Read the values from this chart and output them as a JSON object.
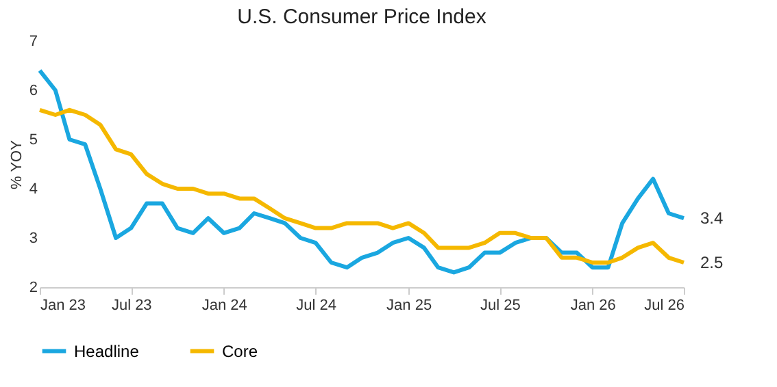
{
  "chart_data": {
    "type": "line",
    "title": "U.S. Consumer Price Index",
    "ylabel": "% YOY",
    "x": [
      "2023-01",
      "2023-02",
      "2023-03",
      "2023-04",
      "2023-05",
      "2023-06",
      "2023-07",
      "2023-08",
      "2023-09",
      "2023-10",
      "2023-11",
      "2023-12",
      "2024-01",
      "2024-02",
      "2024-03",
      "2024-04",
      "2024-05",
      "2024-06",
      "2024-07",
      "2024-08",
      "2024-09",
      "2024-10",
      "2024-11",
      "2024-12",
      "2025-01",
      "2025-02",
      "2025-03",
      "2025-04",
      "2025-05",
      "2025-06",
      "2025-07",
      "2025-08",
      "2025-09",
      "2025-10",
      "2025-11",
      "2025-12",
      "2026-01",
      "2026-02",
      "2026-03",
      "2026-04",
      "2026-05",
      "2026-06",
      "2026-07"
    ],
    "series": [
      {
        "name": "Headline",
        "color": "#1aa7e0",
        "values": [
          6.4,
          6.0,
          5.0,
          4.9,
          4.0,
          3.0,
          3.2,
          3.7,
          3.7,
          3.2,
          3.1,
          3.4,
          3.1,
          3.2,
          3.5,
          3.4,
          3.3,
          3.0,
          2.9,
          2.5,
          2.4,
          2.6,
          2.7,
          2.9,
          3.0,
          2.8,
          2.4,
          2.3,
          2.4,
          2.7,
          2.7,
          2.9,
          3.0,
          3.0,
          2.7,
          2.7,
          2.4,
          2.4,
          3.3,
          3.8,
          4.2,
          3.5,
          3.4
        ]
      },
      {
        "name": "Core",
        "color": "#f5b800",
        "values": [
          5.6,
          5.5,
          5.6,
          5.5,
          5.3,
          4.8,
          4.7,
          4.3,
          4.1,
          4.0,
          4.0,
          3.9,
          3.9,
          3.8,
          3.8,
          3.6,
          3.4,
          3.3,
          3.2,
          3.2,
          3.3,
          3.3,
          3.3,
          3.2,
          3.3,
          3.1,
          2.8,
          2.8,
          2.8,
          2.9,
          3.1,
          3.1,
          3.0,
          3.0,
          2.6,
          2.6,
          2.5,
          2.5,
          2.6,
          2.8,
          2.9,
          2.6,
          2.5
        ]
      }
    ],
    "xlim": [
      "2023-01",
      "2026-07"
    ],
    "xticks": [
      {
        "value": "2023-01",
        "label": "Jan 23"
      },
      {
        "value": "2023-07",
        "label": "Jul 23"
      },
      {
        "value": "2024-01",
        "label": "Jan 24"
      },
      {
        "value": "2024-07",
        "label": "Jul 24"
      },
      {
        "value": "2025-01",
        "label": "Jan 25"
      },
      {
        "value": "2025-07",
        "label": "Jul 25"
      },
      {
        "value": "2026-01",
        "label": "Jan 26"
      },
      {
        "value": "2026-07",
        "label": "Jul 26"
      }
    ],
    "ylim": [
      2,
      7
    ],
    "yticks": [
      2,
      3,
      4,
      5,
      6,
      7
    ],
    "annotations": [
      {
        "text": "3.4",
        "x": "2026-07",
        "y": 3.4
      },
      {
        "text": "2.5",
        "x": "2026-07",
        "y": 2.5
      }
    ],
    "grid": false,
    "legend": "bottom",
    "marker": "none",
    "line_style": "solid"
  }
}
